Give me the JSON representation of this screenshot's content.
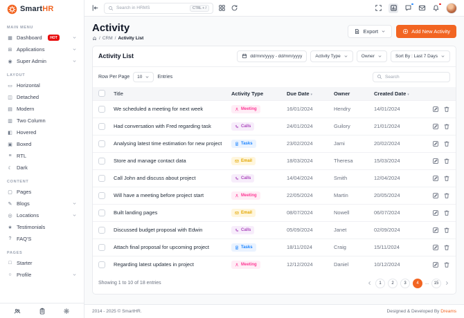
{
  "app": {
    "brand_smart": "Smart",
    "brand_hr": "HR"
  },
  "colors": {
    "primary": "#F26522",
    "hot_badge": "#E70D0D",
    "notification_dot_blue": "#1B84FF",
    "notification_dot_red": "#E70D0D"
  },
  "topbar": {
    "search_placeholder": "Search in HRMS",
    "shortcut": "CTRL + /"
  },
  "sidebar": {
    "sections": [
      {
        "label": "MAIN MENU",
        "items": [
          {
            "label": "Dashboard",
            "icon": "dashboard-icon",
            "badge": "HOT",
            "chevron": true
          },
          {
            "label": "Applications",
            "icon": "applications-icon",
            "chevron": true
          },
          {
            "label": "Super Admin",
            "icon": "super-admin-icon",
            "chevron": true
          }
        ]
      },
      {
        "label": "LAYOUT",
        "items": [
          {
            "label": "Horizontal",
            "icon": "horizontal-icon"
          },
          {
            "label": "Detached",
            "icon": "detached-icon"
          },
          {
            "label": "Modern",
            "icon": "modern-icon"
          },
          {
            "label": "Two Column",
            "icon": "two-column-icon"
          },
          {
            "label": "Hovered",
            "icon": "hovered-icon"
          },
          {
            "label": "Boxed",
            "icon": "boxed-icon"
          },
          {
            "label": "RTL",
            "icon": "rtl-icon"
          },
          {
            "label": "Dark",
            "icon": "dark-icon"
          }
        ]
      },
      {
        "label": "CONTENT",
        "items": [
          {
            "label": "Pages",
            "icon": "pages-icon"
          },
          {
            "label": "Blogs",
            "icon": "blogs-icon",
            "chevron": true
          },
          {
            "label": "Locations",
            "icon": "locations-icon",
            "chevron": true
          },
          {
            "label": "Testimonials",
            "icon": "testimonials-icon"
          },
          {
            "label": "FAQ'S",
            "icon": "faqs-icon"
          }
        ]
      },
      {
        "label": "PAGES",
        "items": [
          {
            "label": "Starter",
            "icon": "starter-icon"
          },
          {
            "label": "Profile",
            "icon": "profile-icon",
            "chevron": true
          }
        ]
      }
    ],
    "footer_icons": [
      "users-icon",
      "clipboard-icon",
      "gear-icon"
    ]
  },
  "page": {
    "title": "Activity",
    "breadcrumb_sep": "/",
    "breadcrumb": [
      "CRM",
      "Activity List"
    ],
    "export_label": "Export",
    "add_label": "Add New Activity"
  },
  "card": {
    "title": "Activity List",
    "date_range": "dd/mm/yyyy - dd/mm/yyyy",
    "activity_type_filter": "Activity Type",
    "owner_filter": "Owner",
    "sort_label": "Sort By : Last 7 Days",
    "row_per_page_label": "Row Per Page",
    "row_per_page_value": "10",
    "entries_label": "Entries",
    "search_placeholder": "Search"
  },
  "table": {
    "columns": [
      "Title",
      "Activity Type",
      "Due Date",
      "Owner",
      "Created Date"
    ],
    "rows": [
      {
        "title": "We scheduled a meeting for next week",
        "type": "Meeting",
        "due": "16/01/2024",
        "owner": "Hendry",
        "created": "14/01/2024"
      },
      {
        "title": "Had conversation with Fred regarding task",
        "type": "Calls",
        "due": "24/01/2024",
        "owner": "Guilory",
        "created": "21/01/2024"
      },
      {
        "title": "Analysing latest time estimation for new project",
        "type": "Tasks",
        "due": "23/02/2024",
        "owner": "Jami",
        "created": "20/02/2024"
      },
      {
        "title": "Store and manage contact data",
        "type": "Email",
        "due": "18/03/2024",
        "owner": "Theresa",
        "created": "15/03/2024"
      },
      {
        "title": "Call John and discuss about project",
        "type": "Calls",
        "due": "14/04/2024",
        "owner": "Smith",
        "created": "12/04/2024"
      },
      {
        "title": "Will have a meeting before project start",
        "type": "Meeting",
        "due": "22/05/2024",
        "owner": "Martin",
        "created": "20/05/2024"
      },
      {
        "title": "Built landing pages",
        "type": "Email",
        "due": "08/07/2024",
        "owner": "Nowell",
        "created": "06/07/2024"
      },
      {
        "title": "Discussed budget proposal with Edwin",
        "type": "Calls",
        "due": "05/09/2024",
        "owner": "Janet",
        "created": "02/09/2024"
      },
      {
        "title": "Attach final proposal for upcoming project",
        "type": "Tasks",
        "due": "18/11/2024",
        "owner": "Craig",
        "created": "15/11/2024"
      },
      {
        "title": "Regarding latest updates in project",
        "type": "Meeting",
        "due": "12/12/2024",
        "owner": "Daniel",
        "created": "10/12/2024"
      }
    ]
  },
  "badges": {
    "Meeting": {
      "icon": "user-icon",
      "color": "#FD3995",
      "bg": "#FFEDF6"
    },
    "Calls": {
      "icon": "phone-icon",
      "color": "#AB47BC",
      "bg": "#F7EDFB"
    },
    "Tasks": {
      "icon": "task-icon",
      "color": "#1B84FF",
      "bg": "#EAF3FF"
    },
    "Email": {
      "icon": "mail-icon",
      "color": "#E2A600",
      "bg": "#FFF6DD"
    }
  },
  "pagination": {
    "items": [
      {
        "label": "1"
      },
      {
        "label": "2"
      },
      {
        "label": "3"
      },
      {
        "label": "4",
        "active": true
      },
      {
        "label": "...",
        "ellipsis": true
      },
      {
        "label": "15"
      }
    ]
  },
  "footer": {
    "showing": "Showing 1 to 10 of 18 entries",
    "copyright": "2014 - 2025 © SmartHR.",
    "credit_prefix": "Designed & Developed By ",
    "credit_brand": "Dreams"
  }
}
